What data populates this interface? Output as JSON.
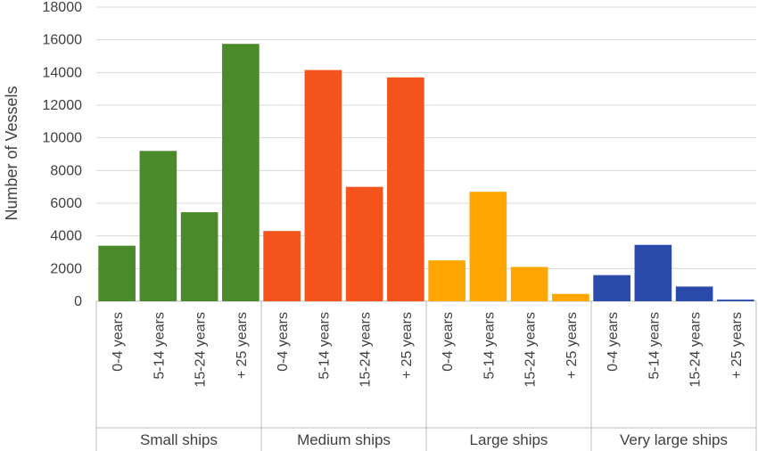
{
  "chart_data": {
    "type": "bar",
    "title": "",
    "xlabel": "",
    "ylabel": "Number of Vessels",
    "ylim": [
      0,
      18000
    ],
    "yticks": [
      0,
      2000,
      4000,
      6000,
      8000,
      10000,
      12000,
      14000,
      16000,
      18000
    ],
    "grid": true,
    "legend": "none",
    "groups": [
      {
        "name": "Small ships",
        "color": "#4a8a2a",
        "categories": [
          "0-4 years",
          "5-14 years",
          "15-24 years",
          "+ 25 years"
        ],
        "values": [
          3400,
          9200,
          5450,
          15750
        ]
      },
      {
        "name": "Medium ships",
        "color": "#f4531c",
        "categories": [
          "0-4 years",
          "5-14 years",
          "15-24 years",
          "+ 25 years"
        ],
        "values": [
          4300,
          14150,
          7000,
          13700
        ]
      },
      {
        "name": "Large ships",
        "color": "#ffa500",
        "categories": [
          "0-4 years",
          "5-14 years",
          "15-24 years",
          "+ 25 years"
        ],
        "values": [
          2500,
          6700,
          2100,
          450
        ]
      },
      {
        "name": "Very large ships",
        "color": "#2b4bab",
        "categories": [
          "0-4 years",
          "5-14 years",
          "15-24 years",
          "+ 25 years"
        ],
        "values": [
          1600,
          3450,
          900,
          100
        ]
      }
    ]
  }
}
